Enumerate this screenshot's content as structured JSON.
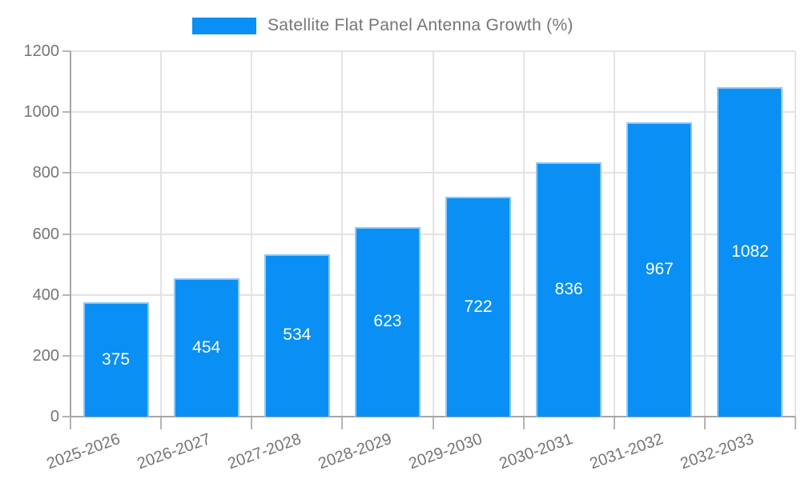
{
  "chart_data": {
    "type": "bar",
    "title": "Satellite Flat Panel Antenna Growth (%)",
    "legend": {
      "position": "top-center",
      "label": "Satellite Flat Panel Antenna Growth (%)"
    },
    "categories": [
      "2025-2026",
      "2026-2027",
      "2027-2028",
      "2028-2029",
      "2029-2030",
      "2030-2031",
      "2031-2032",
      "2032-2033"
    ],
    "values": [
      375,
      454,
      534,
      623,
      722,
      836,
      967,
      1082
    ],
    "xlabel": "",
    "ylabel": "",
    "ylim": [
      0,
      1200
    ],
    "yticks": [
      0,
      200,
      400,
      600,
      800,
      1000,
      1200
    ],
    "grid": true,
    "value_labels_position": "inside-center",
    "x_tick_rotation_deg": -20
  },
  "colors": {
    "bar_fill": "#0A8FF5",
    "bar_border": "#8FC6FB",
    "tick_text": "#757575",
    "value_label_text": "#FFFFFF",
    "gridline": "#E3E3E3",
    "axis_line": "#A6A6A6",
    "tick_mark": "#B5B5B5",
    "background": "#FFFFFF"
  }
}
